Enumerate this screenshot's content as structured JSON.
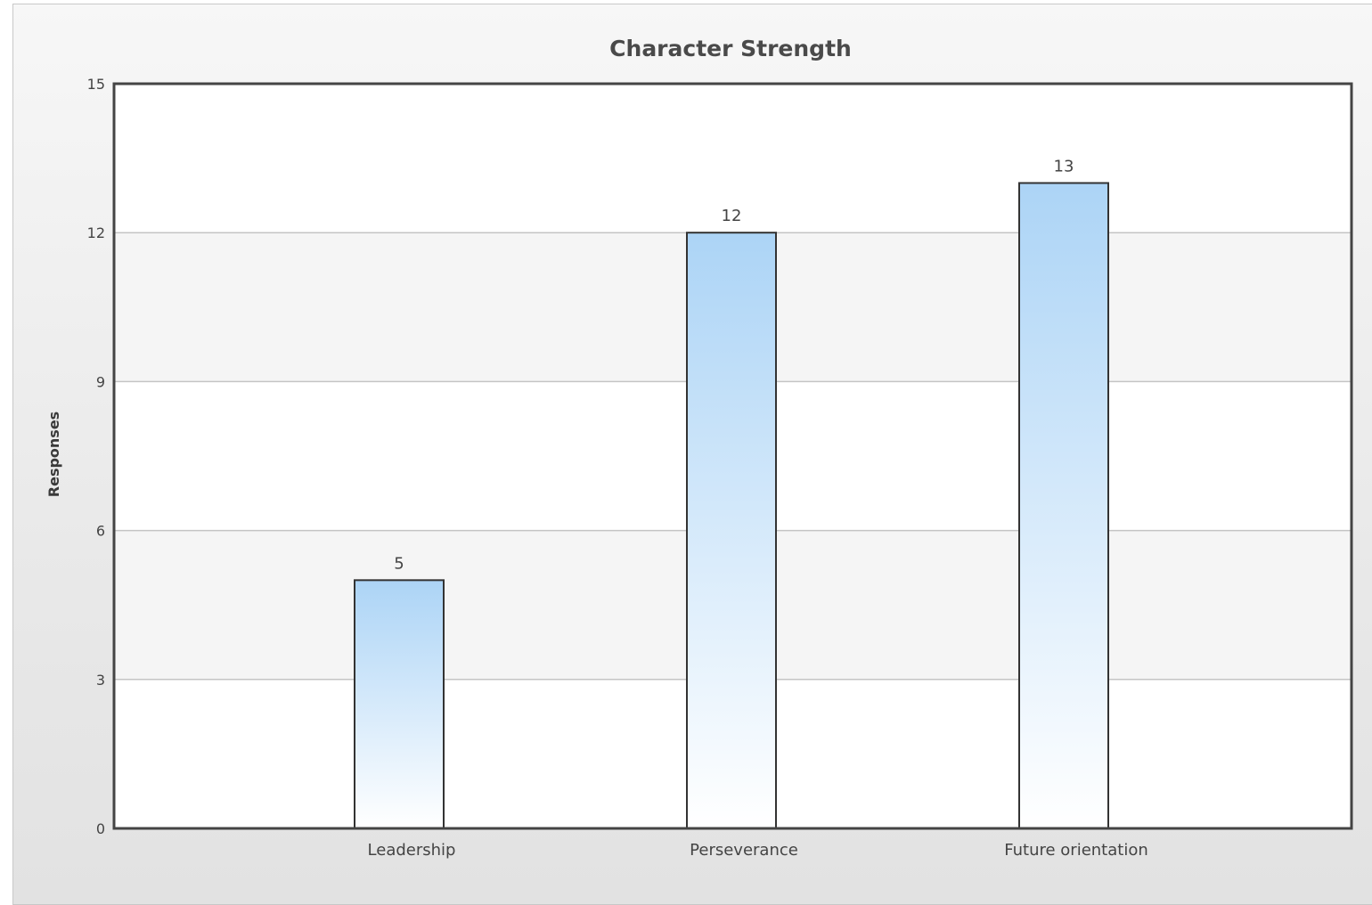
{
  "chart_data": {
    "type": "bar",
    "title": "Character Strength",
    "xlabel": "",
    "ylabel": "Responses",
    "categories": [
      "Leadership",
      "Perseverance",
      "Future orientation"
    ],
    "values": [
      5,
      12,
      13
    ],
    "ylim": [
      0,
      15
    ],
    "yticks": [
      "0",
      "3",
      "6",
      "9",
      "12",
      "15"
    ],
    "grid": true,
    "legend": "none",
    "colors": {
      "bar_top": "#acd4f6",
      "bar_bottom": "#ffffff",
      "bar_border": "#333333",
      "band": "#f5f5f5",
      "grid": "#c4c4c4",
      "axis": "#444444"
    }
  }
}
